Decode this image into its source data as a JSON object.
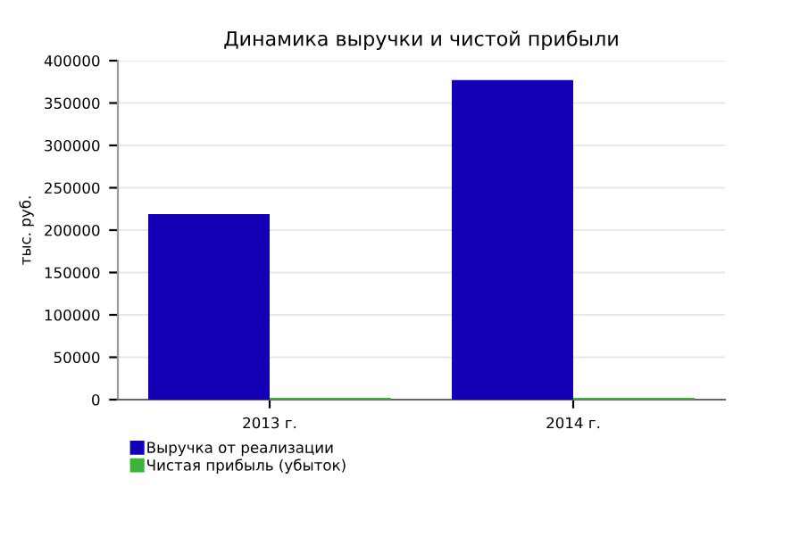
{
  "chart_data": {
    "type": "bar",
    "title": "Динамика выручки и чистой прибыли",
    "ylabel": "тыс. руб.",
    "categories": [
      "2013 г.",
      "2014 г."
    ],
    "series": [
      {
        "name": "Выручка от реализации",
        "color": "#1400b4",
        "values": [
          219000,
          377000
        ]
      },
      {
        "name": "Чистая прибыль (убыток)",
        "color": "#3cb43c",
        "values": [
          2000,
          2000
        ]
      }
    ],
    "ylim": [
      0,
      400000
    ],
    "yticks": [
      0,
      50000,
      100000,
      150000,
      200000,
      250000,
      300000,
      350000,
      400000
    ],
    "grid": "y",
    "legend": "bottom left"
  }
}
